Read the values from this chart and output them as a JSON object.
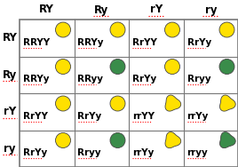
{
  "col_headers": [
    "RY",
    "Ry",
    "rY",
    "ry"
  ],
  "row_headers": [
    "RY",
    "Ry",
    "rY",
    "ry"
  ],
  "cells": [
    [
      "RRYY",
      "RRYy",
      "RrYY",
      "RrYy"
    ],
    [
      "RRYy",
      "RRyy",
      "RrYy",
      "Rryy"
    ],
    [
      "RrYY",
      "RrYy",
      "rrYY",
      "rrYy"
    ],
    [
      "RrYy",
      "Rryy",
      "rrYy",
      "rryy"
    ]
  ],
  "circle_colors": [
    [
      "#FFE000",
      "#FFE000",
      "#FFE000",
      "#FFE000"
    ],
    [
      "#FFE000",
      "#3A8C4A",
      "#FFE000",
      "#3A8C4A"
    ],
    [
      "#FFE000",
      "#FFE000",
      "#FFE000",
      "#FFE000"
    ],
    [
      "#FFE000",
      "#3A8C4A",
      "#FFE000",
      "#3A8C4A"
    ]
  ],
  "wrinkled": [
    [
      false,
      false,
      false,
      false
    ],
    [
      false,
      false,
      false,
      false
    ],
    [
      false,
      false,
      true,
      true
    ],
    [
      false,
      false,
      true,
      true
    ]
  ],
  "col_header_underline": [
    false,
    true,
    true,
    true
  ],
  "row_header_underline": [
    false,
    true,
    true,
    true
  ],
  "cell_underline_all": true,
  "text_color": "#000000",
  "grid_color": "#777777",
  "figure_bg": "#FFFFFF",
  "header_font_size": 8.5,
  "cell_font_size": 7.5
}
